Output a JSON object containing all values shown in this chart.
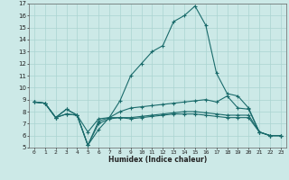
{
  "xlabel": "Humidex (Indice chaleur)",
  "bg_color": "#cce9e7",
  "grid_color": "#aad4d1",
  "line_color": "#1a6b6b",
  "xlim": [
    -0.5,
    23.5
  ],
  "ylim": [
    5,
    17
  ],
  "xticks": [
    0,
    1,
    2,
    3,
    4,
    5,
    6,
    7,
    8,
    9,
    10,
    11,
    12,
    13,
    14,
    15,
    16,
    17,
    18,
    19,
    20,
    21,
    22,
    23
  ],
  "yticks": [
    5,
    6,
    7,
    8,
    9,
    10,
    11,
    12,
    13,
    14,
    15,
    16,
    17
  ],
  "line1_x": [
    0,
    1,
    2,
    3,
    4,
    5,
    6,
    7,
    8,
    9,
    10,
    11,
    12,
    13,
    14,
    15,
    16,
    17,
    18,
    19,
    20,
    21,
    22,
    23
  ],
  "line1_y": [
    8.8,
    8.7,
    7.5,
    8.2,
    7.7,
    6.3,
    7.4,
    7.5,
    8.9,
    11.0,
    12.0,
    13.0,
    13.5,
    15.5,
    16.0,
    16.8,
    15.2,
    11.2,
    9.5,
    9.3,
    8.3,
    6.3,
    6.0,
    6.0
  ],
  "line2_x": [
    0,
    1,
    2,
    3,
    4,
    5,
    6,
    7,
    8,
    9,
    10,
    11,
    12,
    13,
    14,
    15,
    16,
    17,
    18,
    19,
    20,
    21,
    22,
    23
  ],
  "line2_y": [
    8.8,
    8.7,
    7.5,
    8.2,
    7.7,
    5.2,
    6.5,
    7.5,
    8.0,
    8.3,
    8.4,
    8.5,
    8.6,
    8.7,
    8.8,
    8.9,
    9.0,
    8.8,
    9.3,
    8.3,
    8.2,
    6.3,
    6.0,
    6.0
  ],
  "line3_x": [
    0,
    1,
    2,
    3,
    4,
    5,
    6,
    7,
    8,
    9,
    10,
    11,
    12,
    13,
    14,
    15,
    16,
    17,
    18,
    19,
    20,
    21,
    22,
    23
  ],
  "line3_y": [
    8.8,
    8.7,
    7.5,
    7.8,
    7.7,
    5.2,
    7.2,
    7.5,
    7.5,
    7.5,
    7.6,
    7.7,
    7.8,
    7.9,
    8.0,
    8.0,
    7.9,
    7.8,
    7.7,
    7.7,
    7.7,
    6.3,
    6.0,
    6.0
  ],
  "line4_x": [
    0,
    1,
    2,
    3,
    4,
    5,
    6,
    7,
    8,
    9,
    10,
    11,
    12,
    13,
    14,
    15,
    16,
    17,
    18,
    19,
    20,
    21,
    22,
    23
  ],
  "line4_y": [
    8.8,
    8.7,
    7.5,
    7.8,
    7.7,
    5.2,
    7.0,
    7.4,
    7.5,
    7.4,
    7.5,
    7.6,
    7.7,
    7.8,
    7.8,
    7.8,
    7.7,
    7.6,
    7.5,
    7.5,
    7.5,
    6.3,
    6.0,
    6.0
  ]
}
